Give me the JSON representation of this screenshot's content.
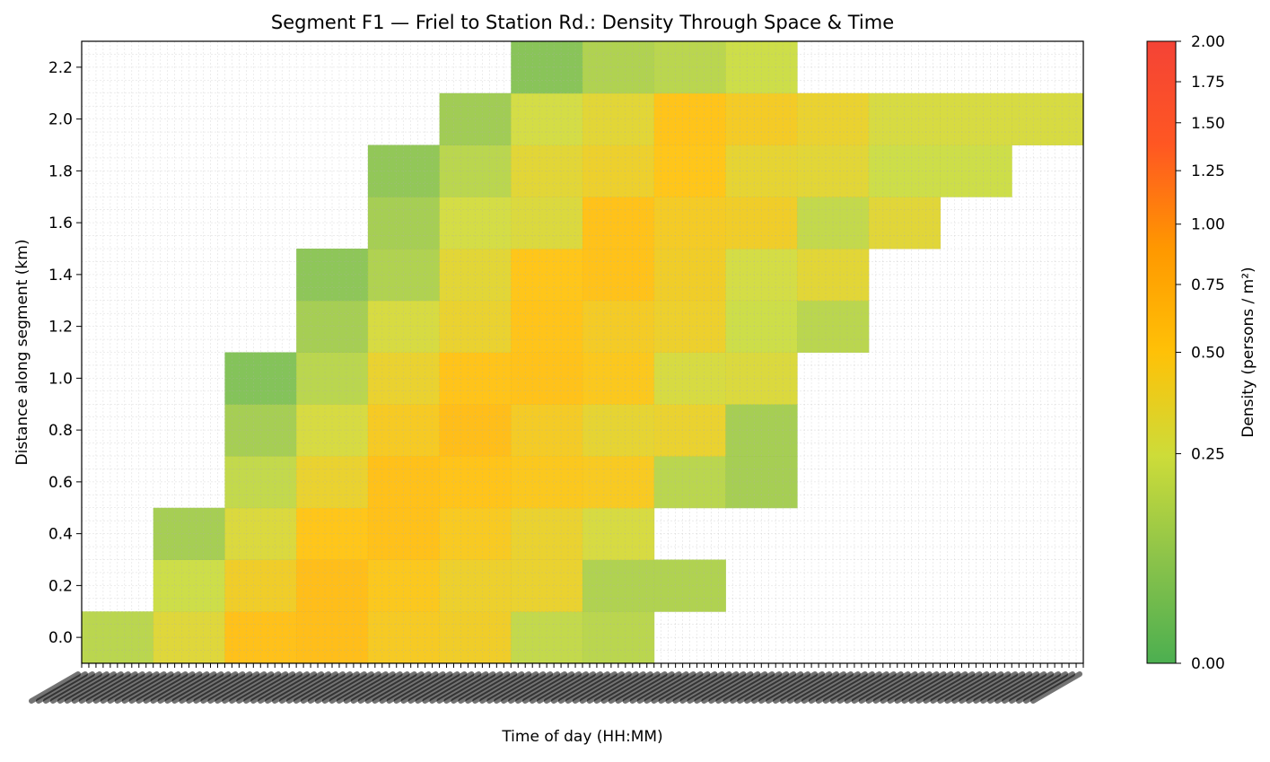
{
  "chart_data": {
    "type": "heatmap",
    "title": "Segment F1 — Friel to Station Rd.: Density Through Space & Time",
    "xlabel": "Time of day (HH:MM)",
    "ylabel": "Distance along segment (km)",
    "colorbar_label": "Density (persons / m²)",
    "colorbar_ticks": [
      "0.00",
      "0.25",
      "0.50",
      "0.75",
      "1.00",
      "1.25",
      "1.50",
      "1.75",
      "2.00"
    ],
    "colorbar_tick_values": [
      0.0,
      0.25,
      0.5,
      0.75,
      1.0,
      1.25,
      1.5,
      1.75,
      2.0
    ],
    "colorbar_range": [
      0.0,
      2.0
    ],
    "colorbar_scale": "nonlinear (expanded below 0.5)",
    "colormap": [
      "#4caf50",
      "#8bc34a",
      "#cddc39",
      "#ffc107",
      "#ff9800",
      "#ff5722",
      "#f44336"
    ],
    "y_ticks": [
      "0.0",
      "0.2",
      "0.4",
      "0.6",
      "0.8",
      "1.0",
      "1.2",
      "1.4",
      "1.6",
      "1.8",
      "2.0",
      "2.2"
    ],
    "y_tick_values": [
      0.0,
      0.2,
      0.4,
      0.6,
      0.8,
      1.0,
      1.2,
      1.4,
      1.6,
      1.8,
      2.0,
      2.2
    ],
    "ylim": [
      -0.1,
      2.3
    ],
    "x_bins": 14,
    "x_labels_note": "time tick labels are dense and overlapping, illegible",
    "grid": true,
    "y_centers": [
      0.0,
      0.2,
      0.4,
      0.6,
      0.8,
      1.0,
      1.2,
      1.4,
      1.6,
      1.8,
      2.0,
      2.2
    ],
    "z": [
      [
        0.2,
        0.32,
        0.55,
        0.58,
        0.45,
        0.42,
        0.22,
        0.2,
        null,
        null,
        null,
        null,
        null,
        null
      ],
      [
        null,
        0.24,
        0.42,
        0.58,
        0.48,
        0.4,
        0.38,
        0.18,
        0.18,
        null,
        null,
        null,
        null,
        null
      ],
      [
        null,
        0.16,
        0.3,
        0.5,
        0.55,
        0.46,
        0.38,
        0.28,
        null,
        null,
        null,
        null,
        null,
        null
      ],
      [
        null,
        null,
        0.22,
        0.38,
        0.55,
        0.52,
        0.48,
        0.46,
        0.2,
        0.16,
        null,
        null,
        null,
        null
      ],
      [
        null,
        null,
        0.16,
        0.28,
        0.45,
        0.58,
        0.44,
        0.36,
        0.38,
        0.16,
        null,
        null,
        null,
        null
      ],
      [
        null,
        null,
        0.09,
        0.2,
        0.38,
        0.52,
        0.54,
        0.48,
        0.28,
        0.3,
        null,
        null,
        null,
        null
      ],
      [
        null,
        null,
        null,
        0.16,
        0.28,
        0.38,
        0.52,
        0.44,
        0.4,
        0.24,
        0.2,
        null,
        null,
        null
      ],
      [
        null,
        null,
        null,
        0.11,
        0.18,
        0.34,
        0.5,
        0.54,
        0.42,
        0.26,
        0.34,
        null,
        null,
        null
      ],
      [
        null,
        null,
        null,
        null,
        0.16,
        0.26,
        0.3,
        0.54,
        0.44,
        0.42,
        0.22,
        0.33,
        null,
        null
      ],
      [
        null,
        null,
        null,
        null,
        0.12,
        0.2,
        0.34,
        0.4,
        0.5,
        0.36,
        0.34,
        0.24,
        0.24,
        null
      ],
      [
        null,
        null,
        null,
        null,
        null,
        0.15,
        0.26,
        0.34,
        0.52,
        0.44,
        0.38,
        0.28,
        0.28,
        0.28
      ],
      [
        null,
        null,
        null,
        null,
        null,
        null,
        0.1,
        0.18,
        0.2,
        0.24,
        null,
        null,
        null,
        null
      ]
    ]
  }
}
